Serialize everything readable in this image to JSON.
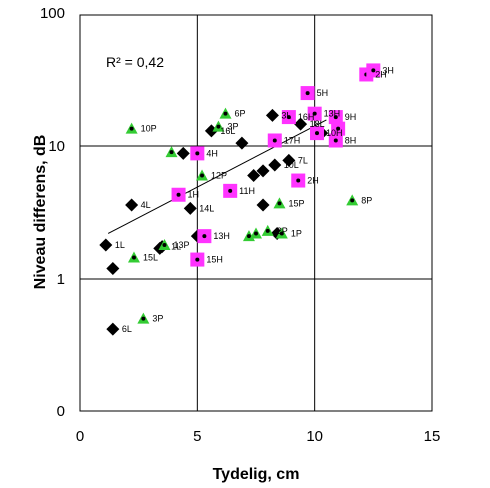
{
  "chart_data": {
    "type": "scatter",
    "title": "",
    "xlabel": "Tydelig, cm",
    "ylabel": "Niveau differens, dB",
    "x_scale": "linear",
    "y_scale": "piecewise: linear 0–1, log 1–100",
    "xlim": [
      0,
      15
    ],
    "ylim": [
      0,
      100
    ],
    "x_ticks": [
      "0",
      "5",
      "10",
      "15"
    ],
    "y_ticks": [
      "0",
      "1",
      "10",
      "100"
    ],
    "grid": true,
    "legend": "none",
    "annotation": "R² = 0,42",
    "colors": {
      "L": "#000000",
      "P": "#33cc33",
      "H": "#ff33ff",
      "dot": "#000000"
    },
    "trendline": {
      "x": [
        1.2,
        10.5
      ],
      "y": [
        2.2,
        15.7
      ]
    },
    "series": [
      {
        "marker": "diamond",
        "color": "#000000",
        "points": [
          {
            "x": 1.1,
            "y": 1.8,
            "label": "1L"
          },
          {
            "x": 1.4,
            "y": 1.2,
            "label": ""
          },
          {
            "x": 1.4,
            "y": 0.62,
            "label": "6L"
          },
          {
            "x": 2.2,
            "y": 3.6,
            "label": "4L"
          },
          {
            "x": 3.4,
            "y": 1.7,
            "label": ""
          },
          {
            "x": 3.5,
            "y": 1.75,
            "label": "1L"
          },
          {
            "x": 4.7,
            "y": 3.4,
            "label": "14L"
          },
          {
            "x": 4.4,
            "y": 8.8,
            "label": ""
          },
          {
            "x": 5.0,
            "y": 2.1,
            "label": ""
          },
          {
            "x": 5.6,
            "y": 13.0,
            "label": "16L"
          },
          {
            "x": 6.9,
            "y": 10.5,
            "label": ""
          },
          {
            "x": 7.4,
            "y": 6.0,
            "label": ""
          },
          {
            "x": 7.8,
            "y": 6.5,
            "label": ""
          },
          {
            "x": 7.8,
            "y": 3.6,
            "label": ""
          },
          {
            "x": 8.2,
            "y": 17.0,
            "label": "3L"
          },
          {
            "x": 8.3,
            "y": 7.2,
            "label": "10L"
          },
          {
            "x": 8.4,
            "y": 2.2,
            "label": ""
          },
          {
            "x": 8.9,
            "y": 7.8,
            "label": "7L"
          },
          {
            "x": 9.4,
            "y": 14.6,
            "label": "18L"
          },
          {
            "x": 10.3,
            "y": 12.5,
            "label": ""
          }
        ]
      },
      {
        "marker": "triangle",
        "color": "#33cc33",
        "points": [
          {
            "x": 2.2,
            "y": 13.5,
            "label": "10P"
          },
          {
            "x": 2.3,
            "y": 1.45,
            "label": "15L"
          },
          {
            "x": 2.7,
            "y": 0.7,
            "label": "3P"
          },
          {
            "x": 3.9,
            "y": 9.0,
            "label": ""
          },
          {
            "x": 3.6,
            "y": 1.8,
            "label": "13P"
          },
          {
            "x": 5.2,
            "y": 6.0,
            "label": "12P"
          },
          {
            "x": 5.9,
            "y": 14.0,
            "label": "3P"
          },
          {
            "x": 6.2,
            "y": 17.5,
            "label": "6P"
          },
          {
            "x": 7.2,
            "y": 2.1,
            "label": ""
          },
          {
            "x": 7.5,
            "y": 2.2,
            "label": ""
          },
          {
            "x": 8.0,
            "y": 2.3,
            "label": "2P"
          },
          {
            "x": 8.5,
            "y": 3.7,
            "label": "15P"
          },
          {
            "x": 8.6,
            "y": 2.2,
            "label": "1P"
          },
          {
            "x": 11.6,
            "y": 3.9,
            "label": "8P"
          }
        ]
      },
      {
        "marker": "square",
        "color": "#ff33ff",
        "points": [
          {
            "x": 4.2,
            "y": 4.3,
            "label": "1H"
          },
          {
            "x": 5.0,
            "y": 8.8,
            "label": "4H"
          },
          {
            "x": 5.0,
            "y": 1.4,
            "label": "15H"
          },
          {
            "x": 5.3,
            "y": 2.1,
            "label": "13H"
          },
          {
            "x": 6.4,
            "y": 4.6,
            "label": "11H"
          },
          {
            "x": 8.3,
            "y": 11.0,
            "label": "17H"
          },
          {
            "x": 8.9,
            "y": 16.5,
            "label": "16H"
          },
          {
            "x": 9.3,
            "y": 5.5,
            "label": "2H"
          },
          {
            "x": 9.7,
            "y": 25.0,
            "label": "5H"
          },
          {
            "x": 10.0,
            "y": 17.5,
            "label": "13H"
          },
          {
            "x": 10.1,
            "y": 12.5,
            "label": "10H"
          },
          {
            "x": 10.9,
            "y": 16.5,
            "label": "9H"
          },
          {
            "x": 10.9,
            "y": 11.0,
            "label": "8H"
          },
          {
            "x": 11.0,
            "y": 13.5,
            "label": ""
          },
          {
            "x": 12.2,
            "y": 34.5,
            "label": "2H"
          },
          {
            "x": 12.5,
            "y": 37.0,
            "label": "3H"
          }
        ]
      }
    ]
  }
}
